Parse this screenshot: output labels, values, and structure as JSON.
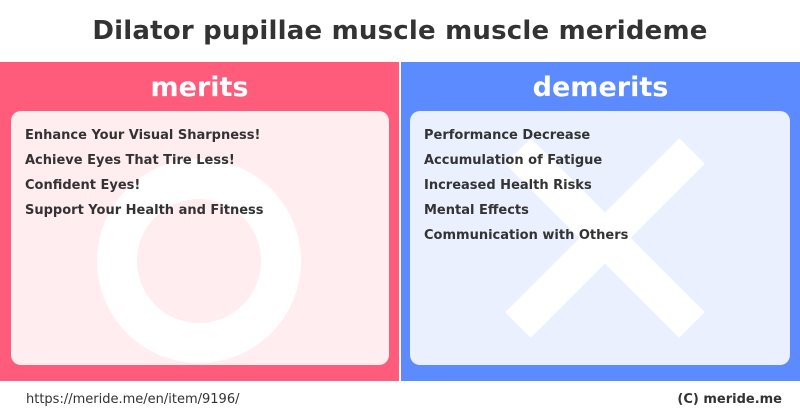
{
  "title": "Dilator pupillae muscle muscle merideme",
  "merits": {
    "heading": "merits",
    "color": "#ff5c7c",
    "card_color": "#ffedf0",
    "symbol": "circle-icon",
    "items": [
      "Enhance Your Visual Sharpness!",
      "Achieve Eyes That Tire Less!",
      "Confident Eyes!",
      "Support Your Health and Fitness"
    ]
  },
  "demerits": {
    "heading": "demerits",
    "color": "#5c8bff",
    "card_color": "#ebf0ff",
    "symbol": "cross-icon",
    "items": [
      "Performance Decrease",
      "Accumulation of Fatigue",
      "Increased Health Risks",
      "Mental Effects",
      "Communication with Others"
    ]
  },
  "footer": {
    "url": "https://meride.me/en/item/9196/",
    "copyright": "(C) meride.me"
  }
}
